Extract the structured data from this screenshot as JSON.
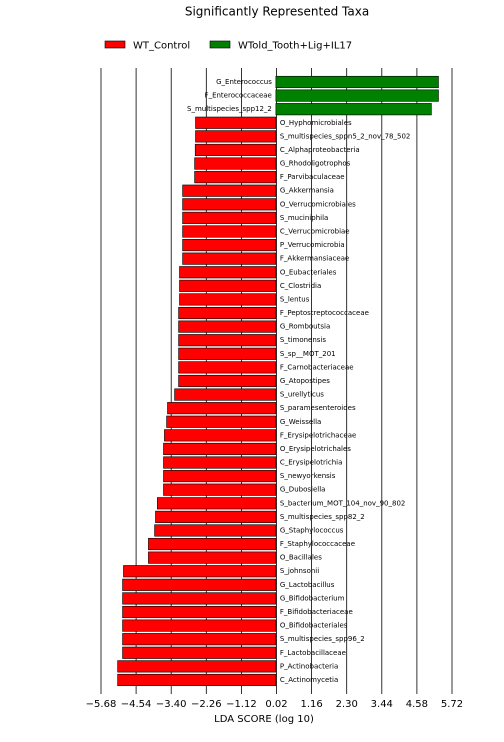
{
  "chart_data": {
    "type": "bar",
    "orientation": "horizontal",
    "title": "Significantly Represented Taxa",
    "x_label": "LDA SCORE (log 10)",
    "categories": [
      "G_Enterococcus",
      "F_Enterococcaceae",
      "S_multispecies_spp12_2",
      "O_Hyphomicrobiales",
      "S_multispecies_sppn5_2_nov_78_502",
      "C_Alphaproteobacteria",
      "G_Rhodoligotrophos",
      "F_Parvibaculaceae",
      "G_Akkermansia",
      "O_Verrucomicrobiales",
      "S_muciniphila",
      "C_Verrucomicrobiae",
      "P_Verrucomicrobia",
      "F_Akkermansiaceae",
      "O_Eubacteriales",
      "C_Clostridia",
      "S_lentus",
      "F_Peptostreptococcaceae",
      "G_Romboutsia",
      "S_timonensis",
      "S_sp__MOT_201",
      "F_Carnobacteriaceae",
      "G_Atopostipes",
      "S_urellyticus",
      "S_paramesenteroides",
      "G_Weissella",
      "F_Erysipelotrichaceae",
      "O_Erysipelotrichales",
      "C_Erysipelotrichia",
      "S_newyorkensis",
      "G_Dubosiella",
      "S_bacterium_MOT_104_nov_90_802",
      "S_multispecies_spp82_2",
      "G_Staphylococcus",
      "F_Staphylococcaceae",
      "O_Bacillales",
      "S_johnsonii",
      "G_Lactobacillus",
      "G_Bifidobacterium",
      "F_Bifidobacteriaceae",
      "O_Bifidobacteriales",
      "S_multispecies_spp96_2",
      "F_Lactobacillaceae",
      "P_Actinobacteria",
      "C_Actinomycetia"
    ],
    "series": [
      {
        "name": "WT_Control",
        "color": "#ff0000",
        "values": [
          null,
          null,
          null,
          -2.61,
          -2.61,
          -2.62,
          -2.64,
          -2.64,
          -3.03,
          -3.03,
          -3.03,
          -3.03,
          -3.03,
          -3.03,
          -3.13,
          -3.13,
          -3.13,
          -3.16,
          -3.16,
          -3.16,
          -3.16,
          -3.16,
          -3.16,
          -3.29,
          -3.52,
          -3.55,
          -3.62,
          -3.65,
          -3.65,
          -3.65,
          -3.65,
          -3.85,
          -3.91,
          -3.94,
          -4.14,
          -4.14,
          -4.95,
          -4.98,
          -4.98,
          -4.98,
          -4.98,
          -4.98,
          -4.98,
          -5.14,
          -5.14
        ]
      },
      {
        "name": "WTold_Tooth+Lig+IL17",
        "color": "#008000",
        "values": [
          5.28,
          5.28,
          5.05,
          null,
          null,
          null,
          null,
          null,
          null,
          null,
          null,
          null,
          null,
          null,
          null,
          null,
          null,
          null,
          null,
          null,
          null,
          null,
          null,
          null,
          null,
          null,
          null,
          null,
          null,
          null,
          null,
          null,
          null,
          null,
          null,
          null,
          null,
          null,
          null,
          null,
          null,
          null,
          null,
          null,
          null
        ]
      }
    ],
    "xlim": [
      -5.68,
      5.72
    ],
    "xticks": [
      {
        "value": -5.68,
        "label": "−5.68"
      },
      {
        "value": -4.54,
        "label": "−4.54"
      },
      {
        "value": -3.4,
        "label": "−3.40"
      },
      {
        "value": -2.26,
        "label": "−2.26"
      },
      {
        "value": -1.12,
        "label": "−1.12"
      },
      0.02,
      1.16,
      {
        "value": 2.3,
        "label": "2.30"
      },
      3.44,
      4.58,
      5.72
    ],
    "grid": true
  }
}
